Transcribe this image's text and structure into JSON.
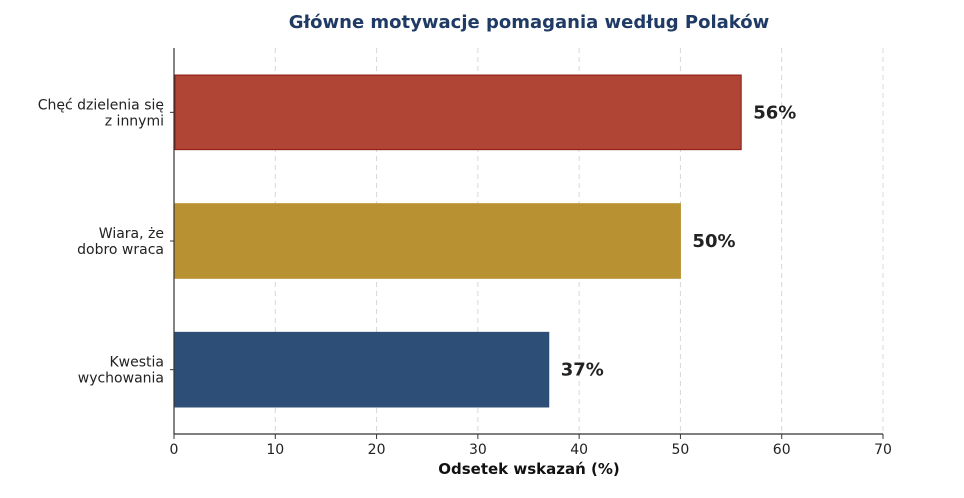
{
  "chart_data": {
    "type": "bar",
    "orientation": "horizontal",
    "title": "Główne motywacje pomagania według Polaków",
    "xlabel": "Odsetek wskazań (%)",
    "ylabel": "",
    "xlim": [
      0,
      70
    ],
    "xticks": [
      0,
      10,
      20,
      30,
      40,
      50,
      60,
      70
    ],
    "grid": "vertical-dashed",
    "categories": [
      [
        "Chęć dzielenia się",
        "z innymi"
      ],
      [
        "Wiara, że",
        "dobro wraca"
      ],
      [
        "Kwestia",
        "wychowania"
      ]
    ],
    "values": [
      56,
      50,
      37
    ],
    "value_labels": [
      "56%",
      "50%",
      "37%"
    ],
    "colors": {
      "bars": [
        "#b04535",
        "#b89232",
        "#2d4f77"
      ],
      "bar_edges": [
        "#8b1a10",
        "#b89232",
        "#2d4f77"
      ],
      "title": "#1f3a64",
      "grid": "#d8d8d8",
      "axis": "#333333"
    }
  }
}
